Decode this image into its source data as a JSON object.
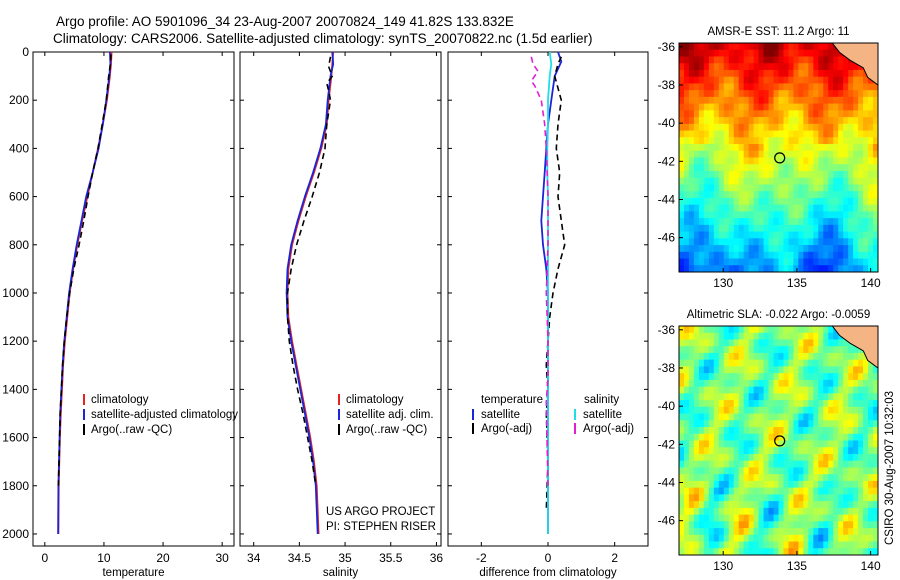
{
  "figure": {
    "title_line1": "Argo profile: AO 5901096_34 23-Aug-2007 20070824_149 41.82S 133.832E",
    "title_line2": "Climatology: CARS2006. Satellite-adjusted climatology: synTS_20070822.nc (1.5d earlier)",
    "credit": "CSIRO 30-Aug-2007 10:32:03",
    "project_line1": "US ARGO PROJECT",
    "project_line2": "PI: STEPHEN RISER"
  },
  "colors": {
    "climatology": "#e8231f",
    "satellite": "#1a24d8",
    "argo": "#000000",
    "sal_satellite": "#22dde8",
    "sal_argo": "#e020d0"
  },
  "chart_data": [
    {
      "id": "temperature",
      "type": "line",
      "xlabel": "temperature",
      "ylabel": "",
      "xlim": [
        -2,
        32
      ],
      "ylim": [
        2050,
        0
      ],
      "xticks": [
        "0",
        "10",
        "20",
        "30"
      ],
      "xtick_values": [
        0,
        10,
        20,
        30
      ],
      "yticks": [
        "0",
        "200",
        "400",
        "600",
        "800",
        "1000",
        "1200",
        "1400",
        "1600",
        "1800",
        "2000"
      ],
      "ytick_values": [
        0,
        200,
        400,
        600,
        800,
        1000,
        1200,
        1400,
        1600,
        1800,
        2000
      ],
      "legend": [
        "climatology",
        "satellite-adjusted climatology",
        "Argo(..raw -QC)"
      ],
      "series": [
        {
          "name": "climatology",
          "style": "solid",
          "x": [
            11.3,
            11.2,
            11.0,
            10.5,
            9.8,
            9.0,
            8.1,
            7.2,
            6.3,
            5.5,
            4.8,
            4.2,
            3.8,
            3.4,
            3.1,
            2.9,
            2.7,
            2.55,
            2.45,
            2.35,
            2.3
          ],
          "y": [
            0,
            50,
            100,
            200,
            300,
            400,
            500,
            600,
            700,
            800,
            900,
            1000,
            1100,
            1200,
            1300,
            1400,
            1500,
            1600,
            1700,
            1800,
            2000
          ]
        },
        {
          "name": "satellite-adjusted climatology",
          "style": "solid",
          "x": [
            11.0,
            11.1,
            10.9,
            10.4,
            9.8,
            9.1,
            8.1,
            7.0,
            6.2,
            5.4,
            4.7,
            4.1,
            3.7,
            3.3,
            3.0,
            2.8,
            2.6,
            2.5,
            2.4,
            2.3,
            2.25
          ],
          "y": [
            0,
            50,
            100,
            200,
            300,
            400,
            500,
            600,
            700,
            800,
            900,
            1000,
            1100,
            1200,
            1300,
            1400,
            1500,
            1600,
            1700,
            1800,
            2000
          ]
        },
        {
          "name": "Argo(..raw -QC)",
          "style": "dashed",
          "x": [
            11.2,
            11.1,
            10.8,
            10.4,
            9.7,
            9.0,
            8.1,
            7.3,
            6.6,
            5.8,
            4.9,
            4.2,
            3.7,
            3.3,
            3.0,
            2.8,
            2.6,
            2.5,
            2.4,
            2.3
          ],
          "y": [
            10,
            50,
            100,
            200,
            300,
            400,
            500,
            600,
            700,
            800,
            900,
            1000,
            1100,
            1200,
            1300,
            1400,
            1500,
            1600,
            1700,
            1800
          ]
        }
      ]
    },
    {
      "id": "salinity",
      "type": "line",
      "xlabel": "salinity",
      "ylabel": "",
      "xlim": [
        33.85,
        36.05
      ],
      "ylim": [
        2050,
        0
      ],
      "xticks": [
        "34",
        "34.5",
        "35",
        "35.5",
        "36"
      ],
      "xtick_values": [
        34,
        34.5,
        35,
        35.5,
        36
      ],
      "legend": [
        "climatology",
        "satellite adj. clim.",
        "Argo(..raw -QC)"
      ],
      "series": [
        {
          "name": "climatology",
          "style": "solid",
          "x": [
            34.87,
            34.86,
            34.85,
            34.82,
            34.8,
            34.74,
            34.66,
            34.57,
            34.49,
            34.42,
            34.38,
            34.37,
            34.38,
            34.42,
            34.47,
            34.52,
            34.57,
            34.62,
            34.66,
            34.69,
            34.71
          ],
          "y": [
            0,
            50,
            100,
            200,
            300,
            400,
            500,
            600,
            700,
            800,
            900,
            1000,
            1100,
            1200,
            1300,
            1400,
            1500,
            1600,
            1700,
            1800,
            2000
          ]
        },
        {
          "name": "satellite adj. clim.",
          "style": "solid",
          "x": [
            34.86,
            34.87,
            34.84,
            34.81,
            34.79,
            34.73,
            34.65,
            34.56,
            34.48,
            34.41,
            34.37,
            34.36,
            34.37,
            34.41,
            34.46,
            34.51,
            34.56,
            34.61,
            34.65,
            34.68,
            34.7
          ],
          "y": [
            0,
            50,
            100,
            200,
            300,
            400,
            500,
            600,
            700,
            800,
            900,
            1000,
            1100,
            1200,
            1300,
            1400,
            1500,
            1600,
            1700,
            1800,
            2000
          ]
        },
        {
          "name": "Argo(..raw -QC)",
          "style": "dashed",
          "x": [
            34.84,
            34.82,
            34.86,
            34.8,
            34.82,
            34.84,
            34.8,
            34.78,
            34.72,
            34.64,
            34.55,
            34.47,
            34.41,
            34.37,
            34.37,
            34.39,
            34.43,
            34.48,
            34.54,
            34.59,
            34.64,
            34.68
          ],
          "y": [
            20,
            60,
            100,
            130,
            160,
            200,
            300,
            400,
            500,
            600,
            700,
            800,
            900,
            1000,
            1100,
            1200,
            1300,
            1400,
            1500,
            1600,
            1700,
            1800
          ]
        }
      ]
    },
    {
      "id": "difference",
      "type": "line",
      "xlabel": "difference from climatology",
      "ylabel": "",
      "xlim": [
        -3,
        3
      ],
      "ylim": [
        2050,
        0
      ],
      "xticks": [
        "-2",
        "0",
        "2"
      ],
      "xtick_values": [
        -2,
        0,
        2
      ],
      "legend_headers": [
        "temperature",
        "salinity"
      ],
      "legend": [
        "satellite",
        "Argo(-adj)",
        "satellite",
        "Argo(-adj)"
      ],
      "series": [
        {
          "name": "temperature satellite",
          "style": "solid",
          "color_key": "satellite",
          "x": [
            0.3,
            0.4,
            0.2,
            0.1,
            0.0,
            -0.05,
            -0.1,
            -0.15,
            -0.2,
            -0.15,
            -0.05,
            0.0,
            0.0,
            0.0,
            0.0,
            0.0,
            0.0,
            0.0,
            0.0,
            0.0
          ],
          "y": [
            0,
            40,
            100,
            200,
            300,
            400,
            500,
            600,
            700,
            800,
            900,
            1000,
            1100,
            1200,
            1300,
            1400,
            1500,
            1600,
            1800,
            2000
          ]
        },
        {
          "name": "temperature Argo(-adj)",
          "style": "dashed",
          "color_key": "argo",
          "x": [
            0.4,
            0.3,
            0.2,
            0.4,
            0.3,
            0.25,
            0.35,
            0.3,
            0.4,
            0.5,
            0.3,
            0.15,
            0.05,
            0.0,
            -0.05,
            0.0,
            -0.05,
            0.0,
            -0.05
          ],
          "y": [
            20,
            50,
            100,
            200,
            300,
            400,
            500,
            600,
            700,
            800,
            900,
            1000,
            1100,
            1200,
            1300,
            1400,
            1500,
            1700,
            1900
          ]
        },
        {
          "name": "salinity satellite",
          "style": "solid",
          "color_key": "sal_satellite",
          "x": [
            0.05,
            0.1,
            0.05,
            0.0,
            0.0,
            -0.02,
            -0.02,
            0.0,
            0.0,
            0.0,
            0.0,
            0.0,
            0.0,
            0.0,
            0.0,
            0.0,
            0.0,
            0.0,
            0.0
          ],
          "y": [
            0,
            50,
            100,
            200,
            300,
            400,
            500,
            600,
            700,
            800,
            900,
            1000,
            1200,
            1400,
            1500,
            1600,
            1800,
            1900,
            2000
          ]
        },
        {
          "name": "salinity Argo(-adj)",
          "style": "dashed",
          "color_key": "sal_argo",
          "x": [
            -0.5,
            -0.45,
            -0.3,
            -0.5,
            -0.4,
            -0.2,
            -0.1,
            -0.05,
            0.0,
            0.0,
            -0.05,
            0.0,
            0.0,
            -0.05,
            -0.03,
            0.0
          ],
          "y": [
            20,
            50,
            80,
            120,
            140,
            200,
            300,
            400,
            600,
            800,
            1000,
            1200,
            1350,
            1450,
            1600,
            1800
          ]
        }
      ]
    },
    {
      "id": "sst_map",
      "type": "heatmap",
      "title": "AMSR-E SST: 11.2 Argo: 11",
      "xlim": [
        127,
        140.5
      ],
      "ylim": [
        -47.8,
        -35.8
      ],
      "xticks": [
        "130",
        "135",
        "140"
      ],
      "xtick_values": [
        130,
        135,
        140
      ],
      "yticks": [
        "-36",
        "-38",
        "-40",
        "-42",
        "-44",
        "-46"
      ],
      "ytick_values": [
        -36,
        -38,
        -40,
        -42,
        -44,
        -46
      ],
      "marker": {
        "lon": 133.832,
        "lat": -41.82
      },
      "colormap": "jet"
    },
    {
      "id": "sla_map",
      "type": "heatmap",
      "title": "Altimetric SLA: -0.022 Argo: -0.0059",
      "xlim": [
        127,
        140.5
      ],
      "ylim": [
        -47.8,
        -35.8
      ],
      "xticks": [
        "130",
        "135",
        "140"
      ],
      "xtick_values": [
        130,
        135,
        140
      ],
      "yticks": [
        "-36",
        "-38",
        "-40",
        "-42",
        "-44",
        "-46"
      ],
      "ytick_values": [
        -36,
        -38,
        -40,
        -42,
        -44,
        -46
      ],
      "marker": {
        "lon": 133.832,
        "lat": -41.82
      },
      "colormap": "jet"
    }
  ]
}
